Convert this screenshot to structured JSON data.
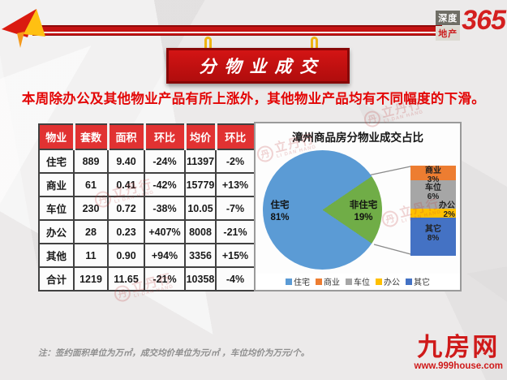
{
  "brand": {
    "line1": "深度",
    "line2": "地产",
    "number": "365"
  },
  "banner": {
    "title": "分物业成交"
  },
  "headline": "本周除办公及其他物业产品有所上涨外，其他物业产品均有不同幅度的下滑。",
  "table": {
    "columns": [
      "物业",
      "套数",
      "面积",
      "环比",
      "均价",
      "环比"
    ],
    "rows": [
      {
        "cells": [
          "住宅",
          "889",
          "9.40",
          "-24%",
          "11397",
          "-2%"
        ]
      },
      {
        "cells": [
          "商业",
          "61",
          "0.41",
          "-42%",
          "15779",
          "+13%"
        ]
      },
      {
        "cells": [
          "车位",
          "230",
          "0.72",
          "-38%",
          "10.05",
          "-7%"
        ]
      },
      {
        "cells": [
          "办公",
          "28",
          "0.23",
          "+407%",
          "8008",
          "-21%"
        ]
      },
      {
        "cells": [
          "其他",
          "11",
          "0.90",
          "+94%",
          "3356",
          "+15%"
        ]
      },
      {
        "cells": [
          "合计",
          "1219",
          "11.65",
          "-21%",
          "10358",
          "-4%"
        ]
      }
    ],
    "positive_color": "#e80000",
    "negative_color": "#00a84f",
    "header_color": "#e13232"
  },
  "chart_data": {
    "type": "pie",
    "title": "漳州商品房分物业成交占比",
    "pie": {
      "labels": [
        "住宅",
        "非住宅"
      ],
      "values": [
        81,
        19
      ],
      "colors": [
        "#5b9bd5",
        "#70ad47"
      ]
    },
    "breakdown_bar": {
      "labels": [
        "商业",
        "车位",
        "办公",
        "其它"
      ],
      "values": [
        3,
        6,
        2,
        8
      ],
      "colors": [
        "#ed7d31",
        "#a6a6a6",
        "#ffc000",
        "#4472c4"
      ]
    },
    "legend": [
      {
        "label": "住宅",
        "color": "#5b9bd5"
      },
      {
        "label": "商业",
        "color": "#ed7d31"
      },
      {
        "label": "车位",
        "color": "#a6a6a6"
      },
      {
        "label": "办公",
        "color": "#ffc000"
      },
      {
        "label": "其它",
        "color": "#4472c4"
      }
    ],
    "legend_position": "bottom"
  },
  "watermark": {
    "glyph": "丹",
    "text": "立丹行",
    "subtext": "LI DAN HANG"
  },
  "footnote": "注：签约面积单位为万㎡，成交均价单位为元/㎡ ，车位均价为万元/个。",
  "site": {
    "name": "九房网",
    "url": "www.999house.com"
  }
}
